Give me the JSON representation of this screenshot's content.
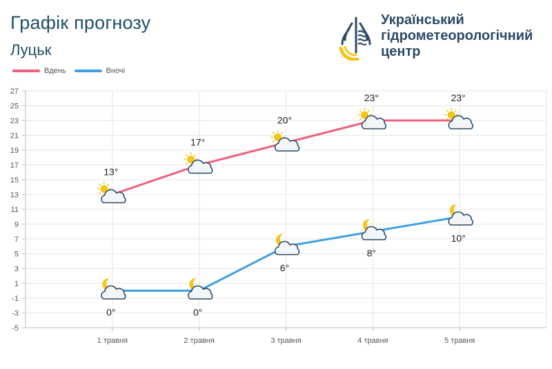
{
  "header": {
    "title": "Графік прогнозу",
    "city": "Луцьк"
  },
  "logo": {
    "line1": "Український",
    "line2": "гідрометеорологічний",
    "line3": "центр",
    "colors": {
      "blue": "#2c4a66",
      "yellow": "#f5c518"
    }
  },
  "legend": {
    "day_label": "Вдень",
    "night_label": "Вночі"
  },
  "chart_data": {
    "type": "line",
    "categories": [
      "1 травня",
      "2 травня",
      "3 травня",
      "4 травня",
      "5 травня"
    ],
    "series": [
      {
        "name": "Вдень",
        "values": [
          13,
          17,
          20,
          23,
          23
        ],
        "labels": [
          "13°",
          "17°",
          "20°",
          "23°",
          "23°"
        ],
        "color": "#f0607e",
        "icon": "sun-cloud-icon"
      },
      {
        "name": "Вночі",
        "values": [
          0,
          0,
          6,
          8,
          10
        ],
        "labels": [
          "0°",
          "0°",
          "6°",
          "8°",
          "10°"
        ],
        "color": "#3ea0e4",
        "icon": "moon-cloud-icon"
      }
    ],
    "y_ticks": [
      -5,
      -3,
      -1,
      1,
      3,
      5,
      7,
      9,
      11,
      13,
      15,
      17,
      19,
      21,
      23,
      25,
      27
    ],
    "ylim": [
      -5,
      27
    ],
    "grid": true,
    "legend_position": "top-left"
  }
}
